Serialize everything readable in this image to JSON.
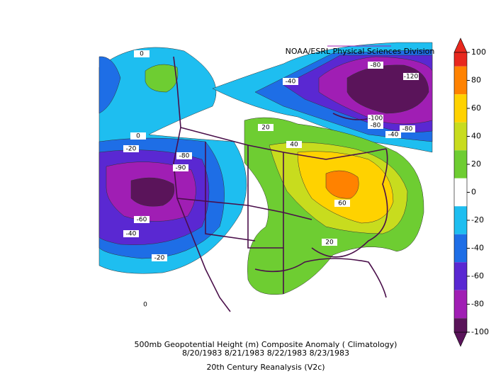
{
  "credit": "NOAA/ESRL Physical Sciences Division",
  "title": "500mb Geopotential Height (m) Composite Anomaly ( Climatology)",
  "dates": "8/20/1983 8/21/1983 8/22/1983 8/23/1983",
  "source": "20th Century Reanalysis (V2c)",
  "colorbar": {
    "ticks": [
      100,
      80,
      60,
      40,
      20,
      0,
      -20,
      -40,
      -60,
      -80,
      -100
    ],
    "colors": [
      "#e8281e",
      "#ff8200",
      "#ffd200",
      "#c8dc1e",
      "#6ecd32",
      "#ffffff",
      "#1ebef0",
      "#1e6ee6",
      "#5a28d2",
      "#a01eb4",
      "#5a145a"
    ]
  },
  "contour_labels": [
    -80,
    -120,
    -40,
    -100,
    -80,
    -40,
    -80,
    0,
    0,
    -20,
    -80,
    -90,
    20,
    40,
    60,
    -60,
    -40,
    -20,
    20,
    0
  ]
}
